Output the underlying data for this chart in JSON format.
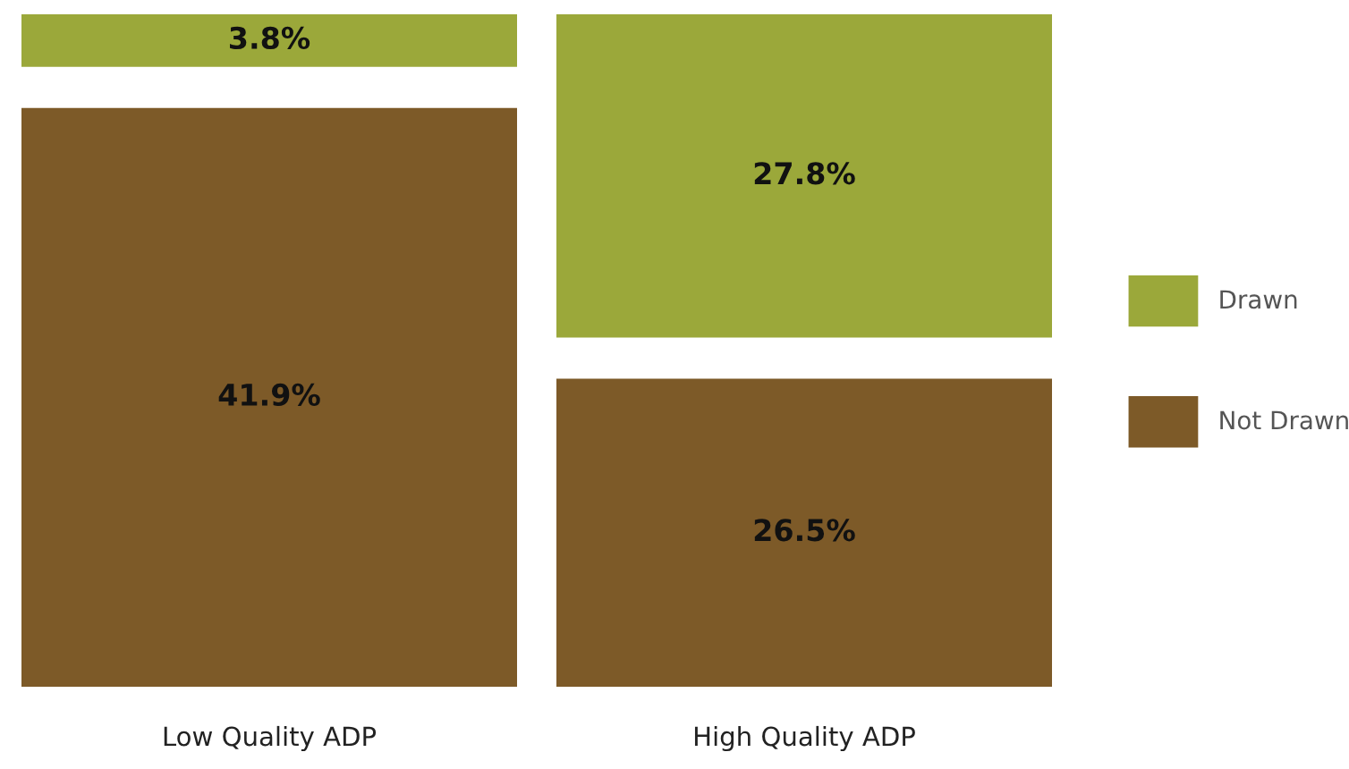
{
  "chart_data": {
    "type": "other",
    "categories": [
      "Low Quality ADP",
      "High Quality ADP"
    ],
    "series": [
      {
        "name": "Drawn",
        "color": "#9ba83a",
        "values": [
          3.8,
          27.8
        ],
        "value_labels": [
          "3.8%",
          "27.8%"
        ]
      },
      {
        "name": "Not Drawn",
        "color": "#7d5a28",
        "values": [
          41.9,
          26.5
        ],
        "value_labels": [
          "41.9%",
          "26.5%"
        ]
      }
    ],
    "legend": "right"
  }
}
